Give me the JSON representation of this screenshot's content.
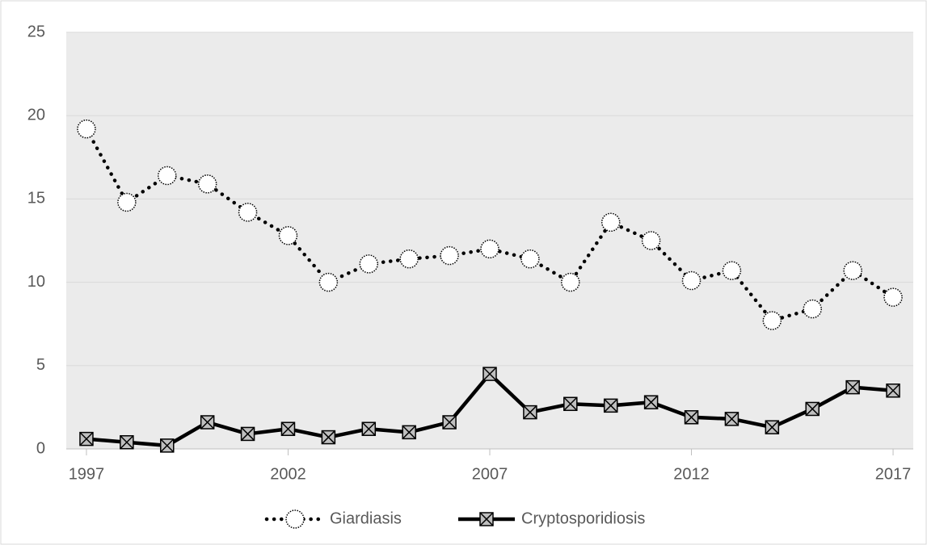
{
  "chart_data": {
    "type": "line",
    "x": [
      1997,
      1998,
      1999,
      2000,
      2001,
      2002,
      2003,
      2004,
      2005,
      2006,
      2007,
      2008,
      2009,
      2010,
      2011,
      2012,
      2013,
      2014,
      2015,
      2016,
      2017
    ],
    "series": [
      {
        "name": "Giardiasis",
        "color": "#000000",
        "line_style": "dotted",
        "marker": "circle",
        "values": [
          19.2,
          14.8,
          16.4,
          15.9,
          14.2,
          12.8,
          10.0,
          11.1,
          11.4,
          11.6,
          12.0,
          11.4,
          10.0,
          13.6,
          12.5,
          10.1,
          10.7,
          7.7,
          8.4,
          10.7,
          9.1
        ]
      },
      {
        "name": "Cryptosporidiosis",
        "color": "#000000",
        "line_style": "solid",
        "marker": "x-square",
        "values": [
          0.6,
          0.4,
          0.2,
          1.6,
          0.9,
          1.2,
          0.7,
          1.2,
          1.0,
          1.6,
          4.5,
          2.2,
          2.7,
          2.6,
          2.8,
          1.9,
          1.8,
          1.3,
          2.4,
          3.7,
          3.5
        ]
      }
    ],
    "xlim": [
      1996.5,
      2017.5
    ],
    "xticks": [
      1997,
      2002,
      2007,
      2012,
      2017
    ],
    "ylim": [
      0,
      25
    ],
    "yticks": [
      0,
      5,
      10,
      15,
      20,
      25
    ],
    "grid": true,
    "legend": "bottom"
  }
}
